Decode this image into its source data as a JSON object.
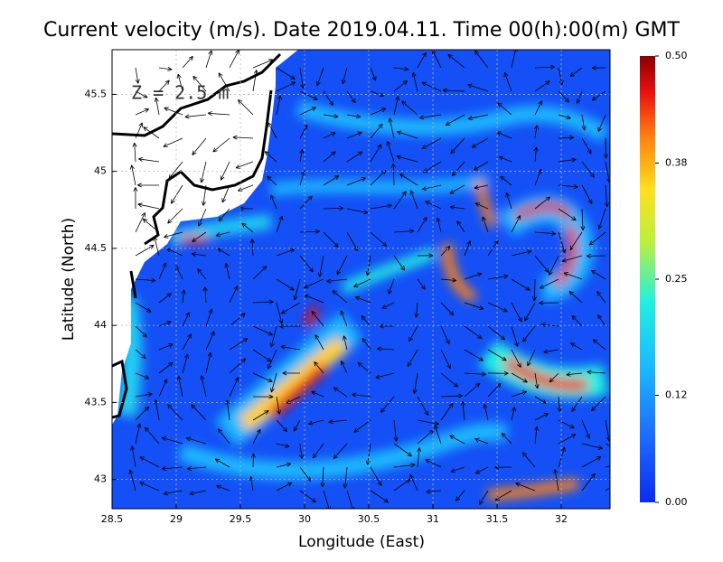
{
  "chart_data": {
    "type": "velocity-map",
    "title": "Current velocity (m/s). Date 2019.04.11. Time 00(h):00(m) GMT",
    "annotation": "Z = 2.5 m",
    "x_label": "Longitude (East)",
    "y_label": "Latitude (North)",
    "xlim": [
      28.5,
      32.38
    ],
    "ylim": [
      42.81,
      45.79
    ],
    "xticks": [
      28.5,
      29,
      29.5,
      30,
      30.5,
      31,
      31.5,
      32
    ],
    "yticks": [
      43,
      43.5,
      44,
      44.5,
      45,
      45.5
    ],
    "grid": true,
    "colorbar": {
      "lim": [
        0,
        0.5
      ],
      "ticks": [
        {
          "value": 0,
          "label": "0.00"
        },
        {
          "value": 0.12,
          "label": "0.12"
        },
        {
          "value": 0.25,
          "label": "0.25"
        },
        {
          "value": 0.38,
          "label": "0.38"
        },
        {
          "value": 0.5,
          "label": "0.50"
        }
      ]
    }
  }
}
